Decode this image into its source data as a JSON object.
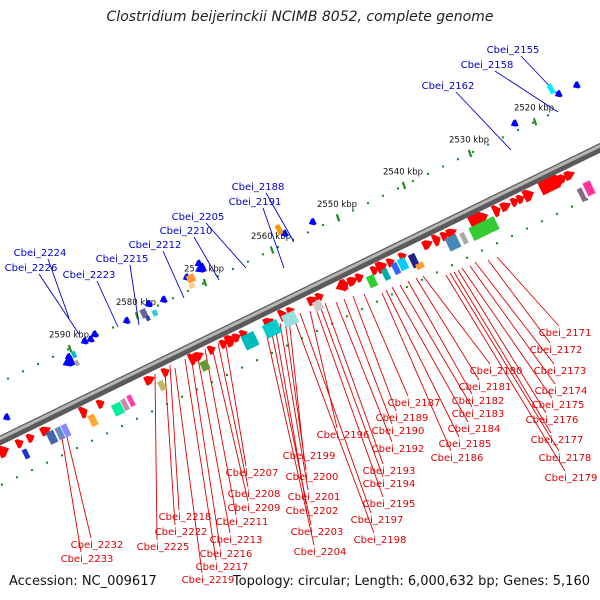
{
  "title": "Clostridium beijerinckii NCIMB 8052, complete genome",
  "accession": "Accession: NC_009617",
  "topology": "Topology: circular; Length: 6,000,632 bp; Genes: 5,160",
  "colors": {
    "forward": "#ff0000",
    "reverse": "#0000ff",
    "backbone": "#808080",
    "tick": "#228b22",
    "top_label": "#0000cc",
    "bottom_label": "#dd0000"
  },
  "scale_labels": [
    "2520 kbp",
    "2530 kbp",
    "2540 kbp",
    "2550 kbp",
    "2560 kbp",
    "2570 kbp",
    "2580 kbp",
    "2590 kbp"
  ],
  "top_labels": [
    "Cbei_2155",
    "Cbei_2158",
    "Cbei_2162",
    "Cbei_2188",
    "Cbei_2191",
    "Cbei_2205",
    "Cbei_2210",
    "Cbei_2212",
    "Cbei_2215",
    "Cbei_2223",
    "Cbei_2224",
    "Cbei_2226"
  ],
  "bottom_labels": [
    "Cbei_2171",
    "Cbei_2172",
    "Cbei_2173",
    "Cbei_2174",
    "Cbei_2175",
    "Cbei_2176",
    "Cbei_2177",
    "Cbei_2178",
    "Cbei_2179",
    "Cbei_2180",
    "Cbei_2181",
    "Cbei_2182",
    "Cbei_2183",
    "Cbei_2184",
    "Cbei_2185",
    "Cbei_2186",
    "Cbei_2187",
    "Cbei_2189",
    "Cbei_2190",
    "Cbei_2192",
    "Cbei_2193",
    "Cbei_2194",
    "Cbei_2195",
    "Cbei_2196",
    "Cbei_2197",
    "Cbei_2198",
    "Cbei_2199",
    "Cbei_2200",
    "Cbei_2201",
    "Cbei_2202",
    "Cbei_2203",
    "Cbei_2204",
    "Cbei_2207",
    "Cbei_2208",
    "Cbei_2209",
    "Cbei_2211",
    "Cbei_2213",
    "Cbei_2216",
    "Cbei_2217",
    "Cbei_2218",
    "Cbei_2219",
    "Cbei_2222",
    "Cbei_2225",
    "Cbei_2232",
    "Cbei_2233"
  ]
}
